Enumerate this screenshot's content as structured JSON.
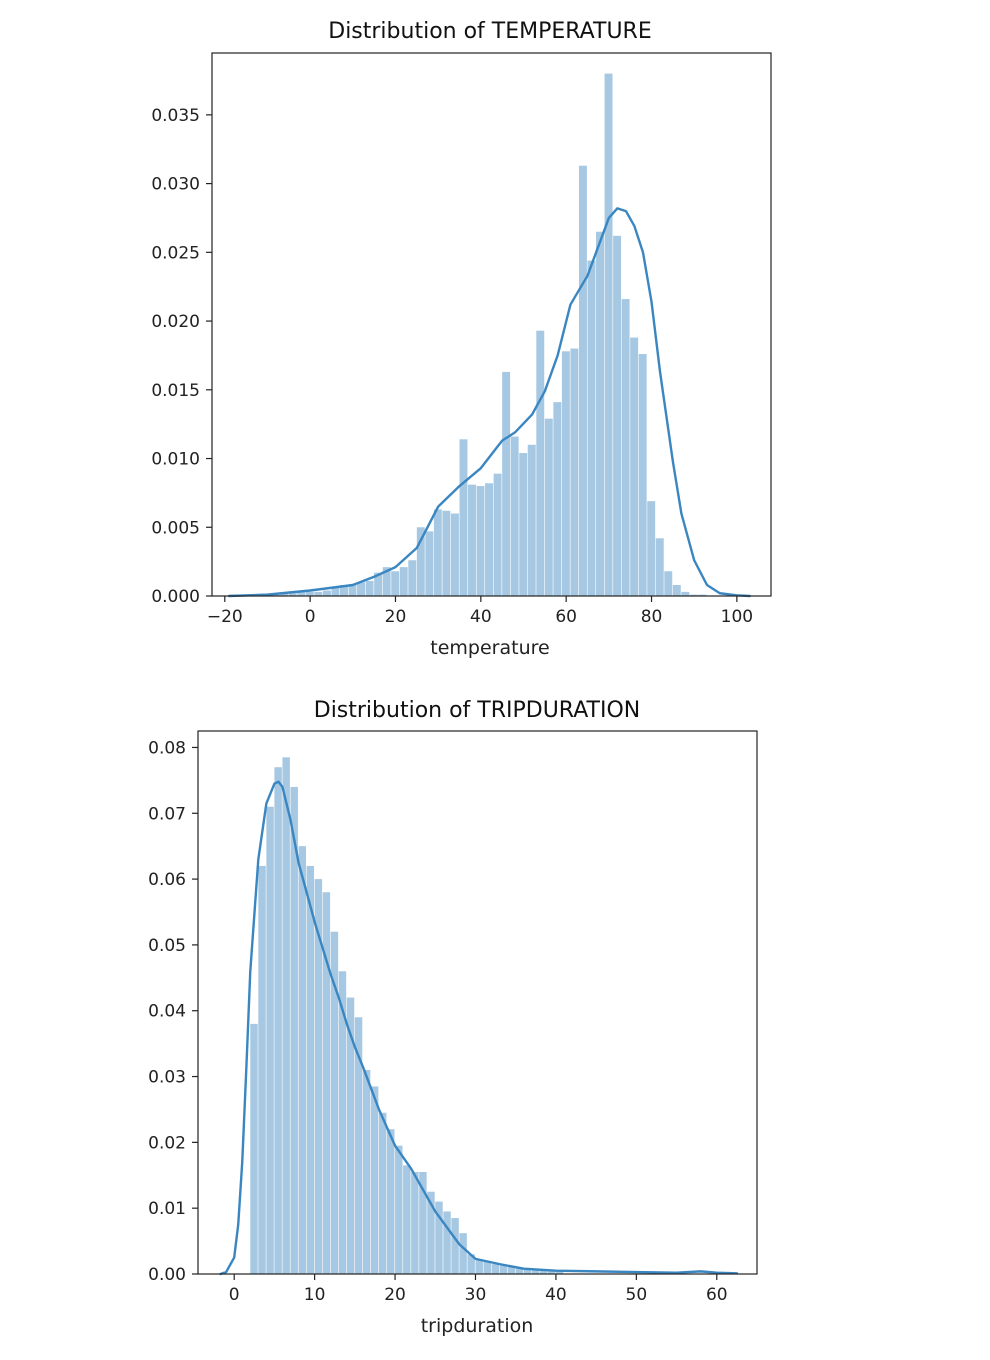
{
  "chart_data": [
    {
      "type": "histogram",
      "title": "Distribution of TEMPERATURE",
      "xlabel": "temperature",
      "ylabel": "",
      "xlim": [
        -23,
        108
      ],
      "ylim": [
        0,
        0.0395
      ],
      "x_ticks": [
        -20,
        0,
        20,
        40,
        60,
        80,
        100
      ],
      "x_tick_labels": [
        "−20",
        "0",
        "20",
        "40",
        "60",
        "80",
        "100"
      ],
      "y_ticks": [
        0,
        0.005,
        0.01,
        0.015,
        0.02,
        0.025,
        0.03,
        0.035
      ],
      "y_tick_labels": [
        "0.000",
        "0.005",
        "0.010",
        "0.015",
        "0.020",
        "0.025",
        "0.030",
        "0.035"
      ],
      "bin_start": -19,
      "bin_width": 2,
      "bar_values": [
        0.0001,
        0.0001,
        0.0001,
        0.0001,
        0.0001,
        0.0001,
        0.0002,
        0.0002,
        0.0003,
        0.0003,
        0.0003,
        0.0004,
        0.0006,
        0.0008,
        0.0008,
        0.001,
        0.0011,
        0.0017,
        0.0021,
        0.0018,
        0.0021,
        0.0026,
        0.005,
        0.0047,
        0.0063,
        0.0062,
        0.006,
        0.0114,
        0.0081,
        0.008,
        0.0082,
        0.0089,
        0.0163,
        0.0116,
        0.0104,
        0.011,
        0.0193,
        0.0129,
        0.0141,
        0.0178,
        0.018,
        0.0313,
        0.0244,
        0.0265,
        0.038,
        0.0262,
        0.0216,
        0.0188,
        0.0176,
        0.0069,
        0.0042,
        0.0018,
        0.0008,
        0.0003,
        0.0001,
        0.0001
      ],
      "kde": {
        "x": [
          -19,
          -10,
          0,
          10,
          15,
          20,
          25,
          30,
          35,
          40,
          45,
          48,
          52,
          55,
          58,
          61,
          65,
          70,
          72,
          74,
          76,
          78,
          80,
          82,
          85,
          87,
          90,
          93,
          96,
          100,
          103
        ],
        "y": [
          0,
          0.0001,
          0.0004,
          0.0008,
          0.0014,
          0.0021,
          0.0035,
          0.0065,
          0.008,
          0.0093,
          0.0113,
          0.0119,
          0.0132,
          0.0149,
          0.0175,
          0.0212,
          0.0233,
          0.0275,
          0.0282,
          0.028,
          0.0269,
          0.025,
          0.0214,
          0.0163,
          0.0098,
          0.006,
          0.0026,
          0.0008,
          0.0002,
          5e-05,
          0
        ]
      },
      "color": "#3a86c1",
      "bar_color": "#a6c8e2"
    },
    {
      "type": "histogram",
      "title": "Distribution of TRIPDURATION",
      "xlabel": "tripduration",
      "ylabel": "",
      "xlim": [
        -4.5,
        65
      ],
      "ylim": [
        0,
        0.0825
      ],
      "x_ticks": [
        0,
        10,
        20,
        30,
        40,
        50,
        60
      ],
      "x_tick_labels": [
        "0",
        "10",
        "20",
        "30",
        "40",
        "50",
        "60"
      ],
      "y_ticks": [
        0,
        0.01,
        0.02,
        0.03,
        0.04,
        0.05,
        0.06,
        0.07,
        0.08
      ],
      "y_tick_labels": [
        "0.00",
        "0.01",
        "0.02",
        "0.03",
        "0.04",
        "0.05",
        "0.06",
        "0.07",
        "0.08"
      ],
      "bin_start": 2,
      "bin_width": 1,
      "bar_values": [
        0.038,
        0.062,
        0.071,
        0.077,
        0.0785,
        0.074,
        0.065,
        0.062,
        0.06,
        0.058,
        0.052,
        0.046,
        0.042,
        0.039,
        0.031,
        0.0285,
        0.0245,
        0.022,
        0.0195,
        0.0165,
        0.0155,
        0.0155,
        0.0125,
        0.011,
        0.0095,
        0.0085,
        0.0062,
        0.003,
        0.0021,
        0.0019,
        0.0015,
        0.0013,
        0.0011,
        0.0009,
        0.0008,
        0.0007,
        0.0006,
        0.0005,
        0.0005
      ],
      "kde": {
        "x": [
          -1.7,
          -1,
          0,
          0.5,
          1,
          1.5,
          2,
          3,
          4,
          5,
          5.5,
          6,
          7,
          8,
          9,
          10,
          11,
          12,
          13,
          14,
          15,
          16,
          18,
          20,
          22,
          25,
          28,
          30,
          33,
          36,
          40,
          45,
          50,
          55,
          58,
          60,
          62.5
        ],
        "y": [
          0,
          0.0003,
          0.0025,
          0.0075,
          0.017,
          0.031,
          0.046,
          0.063,
          0.0715,
          0.0745,
          0.0748,
          0.074,
          0.069,
          0.0625,
          0.058,
          0.0535,
          0.0495,
          0.0455,
          0.042,
          0.038,
          0.0345,
          0.0315,
          0.025,
          0.0195,
          0.016,
          0.0095,
          0.0045,
          0.0023,
          0.0015,
          0.0008,
          0.0005,
          0.0004,
          0.0003,
          0.0002,
          0.0004,
          0.0002,
          0.0001
        ]
      },
      "color": "#3a86c1",
      "bar_color": "#a6c8e2"
    }
  ]
}
